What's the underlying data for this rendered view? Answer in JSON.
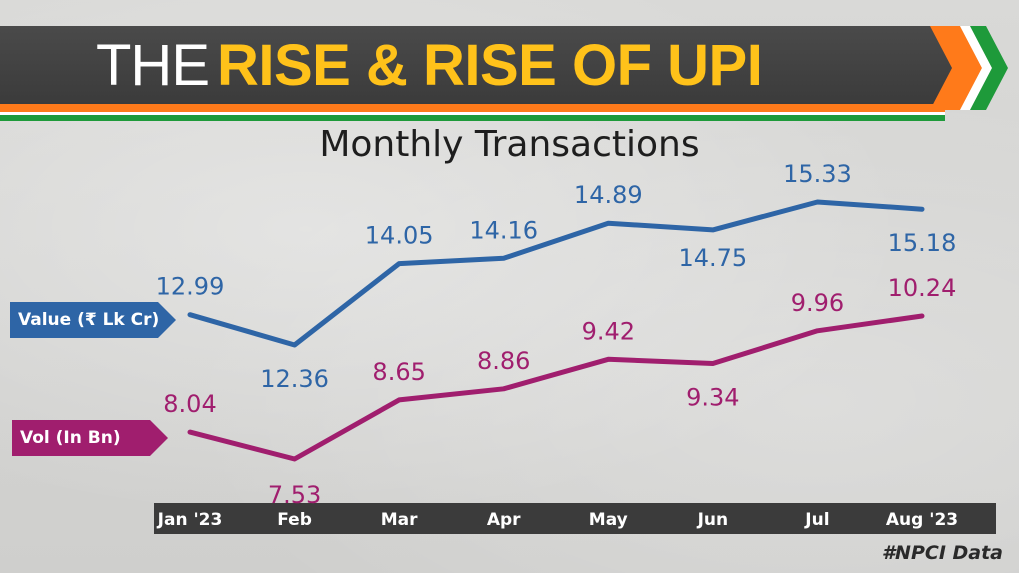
{
  "banner": {
    "title_light": "THE",
    "title_bold": "RISE & RISE OF UPI"
  },
  "subtitle": "Monthly Transactions",
  "legend": {
    "value": "Value (₹ Lk Cr)",
    "volume": "Vol (In Bn)"
  },
  "source": "#NPCI Data",
  "colors": {
    "value_series": "#2e65a6",
    "volume_series": "#a01e6e",
    "banner_accent": "#ffc21a"
  },
  "chart_data": {
    "type": "line",
    "title": "Monthly Transactions",
    "categories": [
      "Jan '23",
      "Feb",
      "Mar",
      "Apr",
      "May",
      "Jun",
      "Jul",
      "Aug '23"
    ],
    "series": [
      {
        "name": "Value (₹ Lk Cr)",
        "values": [
          12.99,
          12.36,
          14.05,
          14.16,
          14.89,
          14.75,
          15.33,
          15.18
        ]
      },
      {
        "name": "Vol (In Bn)",
        "values": [
          8.04,
          7.53,
          8.65,
          8.86,
          9.42,
          9.34,
          9.96,
          10.24
        ]
      }
    ],
    "grid": false,
    "legend": "left"
  }
}
